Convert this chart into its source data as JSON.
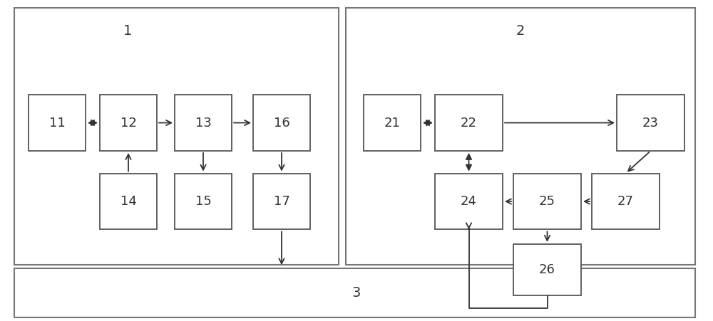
{
  "fig_width": 10.0,
  "fig_height": 4.51,
  "bg_color": "#ffffff",
  "box_edge_color": "#555555",
  "box_face_color": "#ffffff",
  "outer_edge_color": "#777777",
  "arrow_color": "#333333",
  "label_color": "#333333",
  "font_size_box": 13,
  "font_size_label": 14,
  "boxes": {
    "11": [
      0.04,
      0.53,
      0.08,
      0.175
    ],
    "12": [
      0.14,
      0.53,
      0.08,
      0.175
    ],
    "13": [
      0.245,
      0.53,
      0.08,
      0.175
    ],
    "16": [
      0.355,
      0.53,
      0.08,
      0.175
    ],
    "14": [
      0.14,
      0.285,
      0.08,
      0.175
    ],
    "15": [
      0.245,
      0.285,
      0.08,
      0.175
    ],
    "17": [
      0.355,
      0.285,
      0.08,
      0.175
    ],
    "21": [
      0.51,
      0.53,
      0.08,
      0.175
    ],
    "22": [
      0.61,
      0.53,
      0.095,
      0.175
    ],
    "23": [
      0.865,
      0.53,
      0.095,
      0.175
    ],
    "24": [
      0.61,
      0.285,
      0.095,
      0.175
    ],
    "25": [
      0.72,
      0.285,
      0.095,
      0.175
    ],
    "27": [
      0.83,
      0.285,
      0.095,
      0.175
    ],
    "26": [
      0.72,
      0.08,
      0.095,
      0.16
    ]
  },
  "region1": [
    0.02,
    0.175,
    0.455,
    0.8
  ],
  "region2": [
    0.485,
    0.175,
    0.49,
    0.8
  ],
  "region3": [
    0.02,
    0.01,
    0.955,
    0.155
  ],
  "region1_label": "1",
  "region2_label": "2",
  "region3_label": "3"
}
